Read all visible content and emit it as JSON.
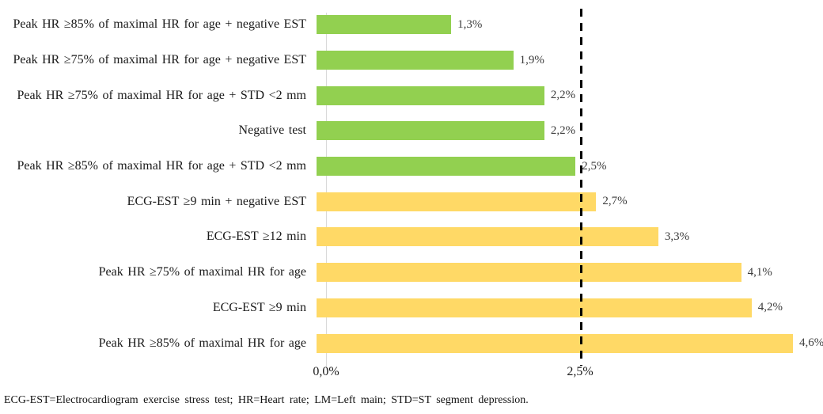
{
  "chart_data": {
    "type": "bar",
    "orientation": "horizontal",
    "title": "",
    "xlabel": "",
    "ylabel": "",
    "categories": [
      "Peak HR ≥85% of maximal HR for age + negative EST",
      "Peak HR ≥75% of maximal HR for age + negative EST",
      "Peak HR ≥75% of maximal HR for age + STD <2 mm",
      "Negative test",
      "Peak HR ≥85% of maximal HR for age + STD <2 mm",
      "ECG-EST ≥9 min + negative EST",
      "ECG-EST ≥12 min",
      "Peak HR ≥75% of maximal HR for age",
      "ECG-EST ≥9 min",
      "Peak HR ≥85% of maximal HR for age"
    ],
    "values": [
      1.3,
      1.9,
      2.2,
      2.2,
      2.5,
      2.7,
      3.3,
      4.1,
      4.2,
      4.6
    ],
    "value_labels": [
      "1,3%",
      "1,9%",
      "2,2%",
      "2,2%",
      "2,5%",
      "2,7%",
      "3,3%",
      "4,1%",
      "4,2%",
      "4,6%"
    ],
    "bar_colors": [
      "#92D050",
      "#92D050",
      "#92D050",
      "#92D050",
      "#92D050",
      "#FFD966",
      "#FFD966",
      "#FFD966",
      "#FFD966",
      "#FFD966"
    ],
    "x_ticks": [
      {
        "label": "0,0%",
        "value": 0.0
      },
      {
        "label": "2,5%",
        "value": 2.5
      }
    ],
    "xlim": [
      0,
      4.89
    ],
    "reference_line_x": 2.5,
    "grid": false,
    "legend": "none"
  },
  "colors": {
    "green": "#92D050",
    "yellow": "#FFD966",
    "axis_line": "#D9D9D9",
    "reference_line": "#000000"
  },
  "footnote": "ECG-EST=Electrocardiogram exercise stress test; HR=Heart rate; LM=Left main; STD=ST segment depression."
}
